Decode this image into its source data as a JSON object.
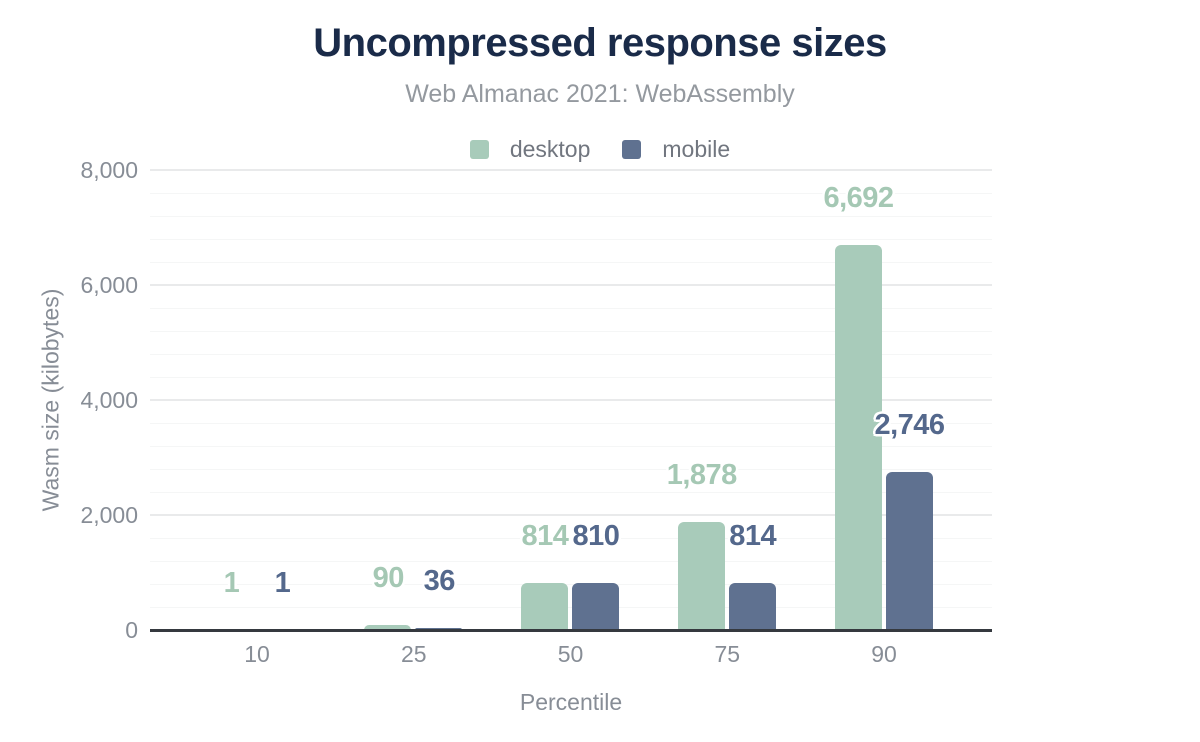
{
  "chart_data": {
    "type": "bar",
    "title": "Uncompressed response sizes",
    "subtitle": "Web Almanac 2021: WebAssembly",
    "xlabel": "Percentile",
    "ylabel": "Wasm size (kilobytes)",
    "categories": [
      "10",
      "25",
      "50",
      "75",
      "90"
    ],
    "series": [
      {
        "name": "desktop",
        "color": "#a8cbba",
        "label_color": "#a5c8b4",
        "values": [
          1,
          90,
          814,
          1878,
          6692
        ],
        "value_labels": [
          "1",
          "90",
          "814",
          "1,878",
          "6,692"
        ]
      },
      {
        "name": "mobile",
        "color": "#5f7190",
        "label_color": "#54688c",
        "values": [
          1,
          36,
          810,
          814,
          2746
        ],
        "value_labels": [
          "1",
          "36",
          "810",
          "814",
          "2,746"
        ]
      }
    ],
    "ylim": [
      0,
      8000
    ],
    "yticks": [
      {
        "value": 0,
        "label": "0"
      },
      {
        "value": 2000,
        "label": "2,000"
      },
      {
        "value": 4000,
        "label": "4,000"
      },
      {
        "value": 6000,
        "label": "6,000"
      },
      {
        "value": 8000,
        "label": "8,000"
      }
    ],
    "y_minor_step": 400,
    "grid": "horizontal",
    "legend_position": "top-center"
  },
  "colors": {
    "title": "#1a2b49",
    "subtitle": "#94999f",
    "axis_text": "#878d96",
    "axis_line": "#35393f",
    "grid_major": "#e9eaeb",
    "grid_minor": "#f5f6f6",
    "background": "#ffffff"
  }
}
